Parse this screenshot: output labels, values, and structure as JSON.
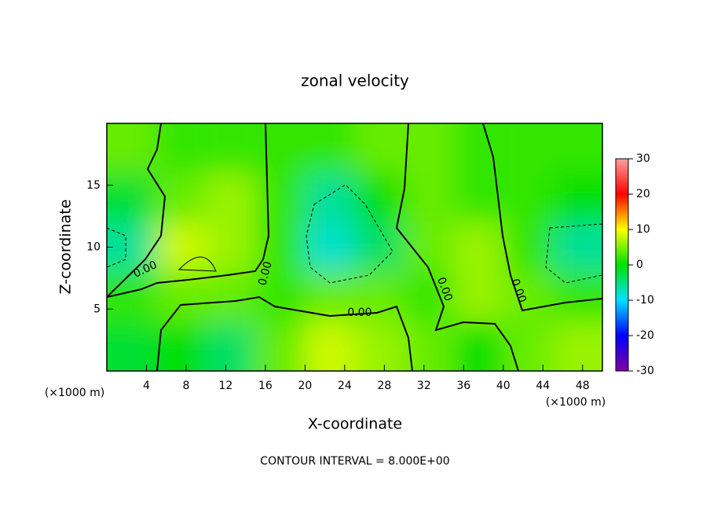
{
  "chart_data": {
    "type": "heatmap",
    "title": "zonal velocity",
    "xlabel": "X-coordinate",
    "ylabel": "Z-coordinate",
    "x_unit": "(×1000 m)",
    "footer": "CONTOUR INTERVAL = 8.000E+00",
    "x": [
      2.5,
      7.5,
      12.5,
      17.5,
      22.5,
      27.5,
      32.5,
      37.5,
      42.5,
      47.5
    ],
    "y": [
      2,
      6,
      10,
      14,
      18
    ],
    "values": [
      [
        -2,
        0,
        -4,
        4,
        8,
        6,
        4,
        0,
        4,
        6
      ],
      [
        2,
        4,
        4,
        2,
        4,
        4,
        2,
        6,
        4,
        2
      ],
      [
        -6,
        8,
        6,
        2,
        -8,
        -4,
        4,
        6,
        2,
        -6
      ],
      [
        -2,
        4,
        6,
        2,
        -6,
        0,
        4,
        2,
        2,
        0
      ],
      [
        4,
        2,
        2,
        2,
        2,
        4,
        4,
        2,
        2,
        2
      ]
    ],
    "xlim": [
      0,
      50
    ],
    "xticks": [
      4,
      8,
      12,
      16,
      20,
      24,
      28,
      32,
      36,
      40,
      44,
      48
    ],
    "ylim": [
      0,
      20
    ],
    "yticks": [
      5,
      10,
      15
    ],
    "clim": [
      -30,
      30
    ],
    "cticks": [
      -30,
      -20,
      -10,
      0,
      10,
      20,
      30
    ],
    "colormap": [
      "#8000a0",
      "#0000ff",
      "#00e0ff",
      "#00e000",
      "#ffff00",
      "#ff0000",
      "#ffa0a0"
    ],
    "contour_labels": [
      "0.00",
      "0.00",
      "0.00",
      "0.00",
      "0.00"
    ]
  }
}
